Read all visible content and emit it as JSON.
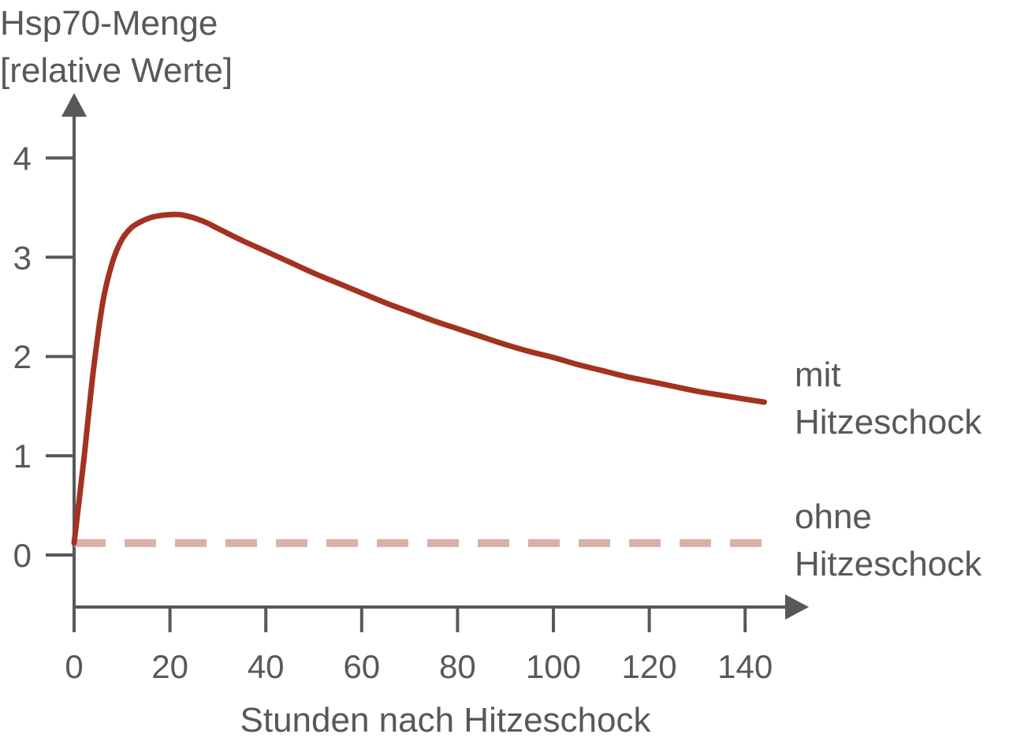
{
  "chart_data": {
    "type": "line",
    "ylabel": [
      "Hsp70-Menge",
      "[relative Werte]"
    ],
    "xlabel": "Stunden nach Hitzeschock",
    "x_ticks": [
      "0",
      "20",
      "40",
      "60",
      "80",
      "100",
      "120",
      "140"
    ],
    "y_ticks": [
      "0",
      "1",
      "2",
      "3",
      "4"
    ],
    "xlim": [
      0,
      140
    ],
    "ylim": [
      0,
      4
    ],
    "grid": false,
    "colors": {
      "axis": "#58585a",
      "mit": "#a33220",
      "ohne": "#d9b0a8",
      "text": "#58585a"
    },
    "series": [
      {
        "name": [
          "mit",
          "Hitzeschock"
        ],
        "style": "solid",
        "x": [
          0,
          2,
          4,
          6,
          8,
          10,
          12,
          14,
          16,
          18,
          20,
          22,
          24,
          26,
          28,
          30,
          35,
          40,
          45,
          50,
          55,
          60,
          65,
          70,
          75,
          80,
          85,
          90,
          95,
          100,
          105,
          110,
          115,
          120,
          125,
          130,
          135,
          140,
          144
        ],
        "y": [
          0.12,
          0.95,
          1.85,
          2.55,
          2.95,
          3.18,
          3.3,
          3.36,
          3.4,
          3.42,
          3.43,
          3.43,
          3.41,
          3.38,
          3.34,
          3.29,
          3.17,
          3.06,
          2.95,
          2.84,
          2.74,
          2.64,
          2.54,
          2.45,
          2.36,
          2.28,
          2.2,
          2.12,
          2.05,
          1.99,
          1.92,
          1.86,
          1.8,
          1.75,
          1.7,
          1.65,
          1.61,
          1.57,
          1.54
        ]
      },
      {
        "name": [
          "ohne",
          "Hitzeschock"
        ],
        "style": "dashed",
        "x": [
          0,
          145
        ],
        "y": [
          0.12,
          0.12
        ]
      }
    ]
  }
}
